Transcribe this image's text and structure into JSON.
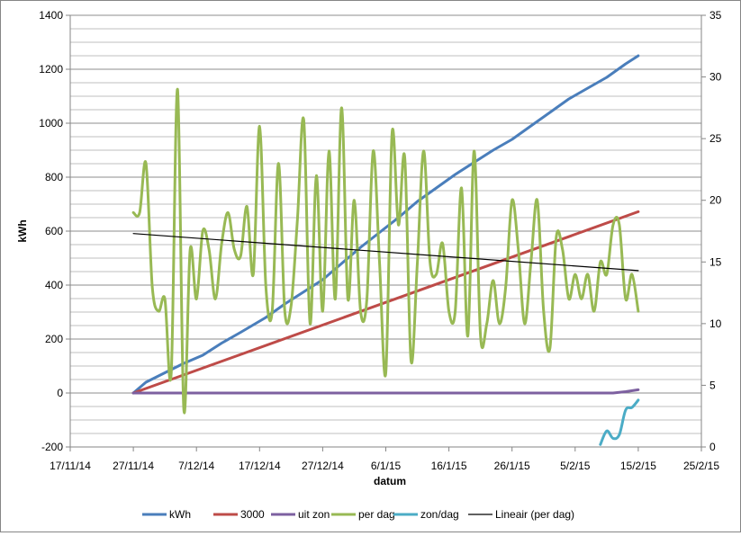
{
  "chart_data": {
    "type": "line",
    "title": "",
    "xlabel": "datum",
    "ylabel": "kWh",
    "y2label": "",
    "x_axis": {
      "ticks": [
        "17/11/14",
        "27/11/14",
        "7/12/14",
        "17/12/14",
        "27/12/14",
        "6/1/15",
        "16/1/15",
        "26/1/15",
        "5/2/15",
        "15/2/15",
        "25/2/15"
      ],
      "tick_dates": [
        "2014-11-17",
        "2014-11-27",
        "2014-12-07",
        "2014-12-17",
        "2014-12-27",
        "2015-01-06",
        "2015-01-16",
        "2015-01-26",
        "2015-02-05",
        "2015-02-15",
        "2015-02-25"
      ]
    },
    "y_left": {
      "ylim": [
        -200,
        1400
      ],
      "ticks": [
        "-200",
        "0",
        "200",
        "400",
        "600",
        "800",
        "1000",
        "1200",
        "1400"
      ]
    },
    "y_right": {
      "ylim": [
        0,
        35
      ],
      "ticks": [
        "0",
        "5",
        "10",
        "15",
        "20",
        "25",
        "30",
        "35"
      ]
    },
    "grid": "horizontal",
    "legend_position": "bottom",
    "series": [
      {
        "name": "kWh",
        "axis": "left",
        "color": "#4a7ebb",
        "smooth": false,
        "points": [
          [
            "2014-11-27",
            0
          ],
          [
            "2014-11-29",
            40
          ],
          [
            "2014-12-02",
            75
          ],
          [
            "2014-12-05",
            110
          ],
          [
            "2014-12-08",
            140
          ],
          [
            "2014-12-11",
            185
          ],
          [
            "2014-12-14",
            225
          ],
          [
            "2014-12-18",
            280
          ],
          [
            "2014-12-21",
            330
          ],
          [
            "2014-12-24",
            375
          ],
          [
            "2014-12-27",
            420
          ],
          [
            "2014-12-30",
            480
          ],
          [
            "2015-01-02",
            540
          ],
          [
            "2015-01-05",
            595
          ],
          [
            "2015-01-08",
            650
          ],
          [
            "2015-01-11",
            710
          ],
          [
            "2015-01-14",
            760
          ],
          [
            "2015-01-17",
            810
          ],
          [
            "2015-01-20",
            855
          ],
          [
            "2015-01-23",
            900
          ],
          [
            "2015-01-26",
            940
          ],
          [
            "2015-01-29",
            990
          ],
          [
            "2015-02-01",
            1040
          ],
          [
            "2015-02-04",
            1090
          ],
          [
            "2015-02-07",
            1130
          ],
          [
            "2015-02-10",
            1170
          ],
          [
            "2015-02-13",
            1220
          ],
          [
            "2015-02-15",
            1250
          ]
        ]
      },
      {
        "name": "3000",
        "axis": "left",
        "color": "#be4b48",
        "smooth": false,
        "points": [
          [
            "2014-11-27",
            0
          ],
          [
            "2015-02-15",
            672
          ]
        ]
      },
      {
        "name": "uit zon",
        "axis": "left",
        "color": "#7d60a0",
        "smooth": false,
        "points": [
          [
            "2014-11-27",
            0
          ],
          [
            "2015-02-11",
            0
          ],
          [
            "2015-02-13",
            5
          ],
          [
            "2015-02-15",
            12
          ]
        ]
      },
      {
        "name": "per dag",
        "axis": "right",
        "color": "#98b954",
        "smooth": true,
        "points": [
          [
            "2014-11-27",
            19
          ],
          [
            "2014-11-28",
            19
          ],
          [
            "2014-11-29",
            23
          ],
          [
            "2014-11-30",
            13
          ],
          [
            "2014-12-01",
            11
          ],
          [
            "2014-12-02",
            12
          ],
          [
            "2014-12-03",
            6
          ],
          [
            "2014-12-04",
            29
          ],
          [
            "2014-12-05",
            3
          ],
          [
            "2014-12-06",
            16
          ],
          [
            "2014-12-07",
            12
          ],
          [
            "2014-12-08",
            17.5
          ],
          [
            "2014-12-09",
            16
          ],
          [
            "2014-12-10",
            12
          ],
          [
            "2014-12-11",
            16.5
          ],
          [
            "2014-12-12",
            19
          ],
          [
            "2014-12-13",
            16
          ],
          [
            "2014-12-14",
            15.5
          ],
          [
            "2014-12-15",
            19.5
          ],
          [
            "2014-12-16",
            14
          ],
          [
            "2014-12-17",
            26
          ],
          [
            "2014-12-18",
            13
          ],
          [
            "2014-12-19",
            11
          ],
          [
            "2014-12-20",
            23
          ],
          [
            "2014-12-21",
            11
          ],
          [
            "2014-12-22",
            11.5
          ],
          [
            "2014-12-23",
            18.5
          ],
          [
            "2014-12-24",
            26.5
          ],
          [
            "2014-12-25",
            10
          ],
          [
            "2014-12-26",
            22
          ],
          [
            "2014-12-27",
            11
          ],
          [
            "2014-12-28",
            24
          ],
          [
            "2014-12-29",
            12
          ],
          [
            "2014-12-30",
            27.5
          ],
          [
            "2014-12-31",
            12
          ],
          [
            "2015-01-01",
            20
          ],
          [
            "2015-01-02",
            11
          ],
          [
            "2015-01-03",
            12
          ],
          [
            "2015-01-04",
            24
          ],
          [
            "2015-01-05",
            15
          ],
          [
            "2015-01-06",
            6
          ],
          [
            "2015-01-07",
            25.5
          ],
          [
            "2015-01-08",
            18
          ],
          [
            "2015-01-09",
            23.5
          ],
          [
            "2015-01-10",
            7
          ],
          [
            "2015-01-11",
            15
          ],
          [
            "2015-01-12",
            24
          ],
          [
            "2015-01-13",
            15
          ],
          [
            "2015-01-14",
            14
          ],
          [
            "2015-01-15",
            16.5
          ],
          [
            "2015-01-16",
            11
          ],
          [
            "2015-01-17",
            11
          ],
          [
            "2015-01-18",
            21
          ],
          [
            "2015-01-19",
            9
          ],
          [
            "2015-01-20",
            24
          ],
          [
            "2015-01-21",
            9
          ],
          [
            "2015-01-22",
            10
          ],
          [
            "2015-01-23",
            13.5
          ],
          [
            "2015-01-24",
            10
          ],
          [
            "2015-01-25",
            13
          ],
          [
            "2015-01-26",
            20
          ],
          [
            "2015-01-27",
            16
          ],
          [
            "2015-01-28",
            10
          ],
          [
            "2015-01-29",
            15
          ],
          [
            "2015-01-30",
            20
          ],
          [
            "2015-01-31",
            11
          ],
          [
            "2015-02-01",
            8
          ],
          [
            "2015-02-02",
            17
          ],
          [
            "2015-02-03",
            16
          ],
          [
            "2015-02-04",
            12
          ],
          [
            "2015-02-05",
            14
          ],
          [
            "2015-02-06",
            12
          ],
          [
            "2015-02-07",
            14
          ],
          [
            "2015-02-08",
            11
          ],
          [
            "2015-02-09",
            15
          ],
          [
            "2015-02-10",
            14
          ],
          [
            "2015-02-11",
            18
          ],
          [
            "2015-02-12",
            18
          ],
          [
            "2015-02-13",
            12
          ],
          [
            "2015-02-14",
            14
          ],
          [
            "2015-02-15",
            11
          ]
        ]
      },
      {
        "name": "zon/dag",
        "axis": "right",
        "color": "#4bacc6",
        "smooth": true,
        "points": [
          [
            "2015-02-09",
            0.2
          ],
          [
            "2015-02-10",
            1.3
          ],
          [
            "2015-02-11",
            0.7
          ],
          [
            "2015-02-12",
            1.0
          ],
          [
            "2015-02-13",
            3.0
          ],
          [
            "2015-02-14",
            3.2
          ],
          [
            "2015-02-15",
            3.8
          ]
        ]
      },
      {
        "name": "Lineair (per dag)",
        "axis": "right",
        "color": "#000000",
        "smooth": false,
        "points": [
          [
            "2014-11-27",
            17.3
          ],
          [
            "2015-02-15",
            14.3
          ]
        ]
      }
    ]
  }
}
